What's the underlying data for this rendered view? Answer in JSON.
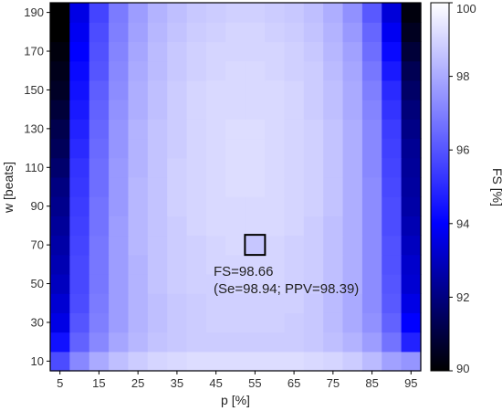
{
  "chart_data": {
    "type": "heatmap",
    "xlabel": "p  [%]",
    "ylabel": "w [beats]",
    "x": [
      5,
      10,
      15,
      20,
      25,
      30,
      35,
      40,
      45,
      50,
      55,
      60,
      65,
      70,
      75,
      80,
      85,
      90,
      95
    ],
    "y": [
      10,
      20,
      30,
      40,
      50,
      60,
      70,
      80,
      90,
      100,
      110,
      120,
      130,
      140,
      150,
      160,
      170,
      180,
      190
    ],
    "x_ticks": [
      5,
      15,
      25,
      35,
      45,
      55,
      65,
      75,
      85,
      95
    ],
    "y_ticks": [
      10,
      30,
      50,
      70,
      90,
      110,
      130,
      150,
      170,
      190
    ],
    "values": [
      [
        95.8,
        97.2,
        98.0,
        98.5,
        98.8,
        99.0,
        99.1,
        99.2,
        99.2,
        99.2,
        99.2,
        99.2,
        99.2,
        99.1,
        99.0,
        98.8,
        98.4,
        97.8,
        97.5
      ],
      [
        94.4,
        96.3,
        97.2,
        97.9,
        98.3,
        98.6,
        98.7,
        98.8,
        98.8,
        98.8,
        98.8,
        98.8,
        98.8,
        98.7,
        98.5,
        98.2,
        97.7,
        96.7,
        94.8
      ],
      [
        93.6,
        96.0,
        97.0,
        97.7,
        98.2,
        98.5,
        98.7,
        98.8,
        98.9,
        98.9,
        98.9,
        98.9,
        98.8,
        98.7,
        98.4,
        98.0,
        97.4,
        96.3,
        94.0
      ],
      [
        93.3,
        95.8,
        96.9,
        97.7,
        98.2,
        98.5,
        98.7,
        98.8,
        98.9,
        98.9,
        98.9,
        98.9,
        98.9,
        98.7,
        98.4,
        98.0,
        97.3,
        96.1,
        93.6
      ],
      [
        93.0,
        95.7,
        96.8,
        97.7,
        98.2,
        98.6,
        98.8,
        98.9,
        98.9,
        99.0,
        99.0,
        99.0,
        98.9,
        98.8,
        98.5,
        98.1,
        97.3,
        96.0,
        93.3
      ],
      [
        92.8,
        95.7,
        96.8,
        97.7,
        98.2,
        98.6,
        98.8,
        98.9,
        99.0,
        99.0,
        99.0,
        99.0,
        98.9,
        98.8,
        98.5,
        98.1,
        97.3,
        95.9,
        93.2
      ],
      [
        92.6,
        95.6,
        96.8,
        97.7,
        98.3,
        98.6,
        98.8,
        98.9,
        99.0,
        99.1,
        98.66,
        99.0,
        98.9,
        98.8,
        98.5,
        98.1,
        97.3,
        95.9,
        93.0
      ],
      [
        92.4,
        95.5,
        96.7,
        97.7,
        98.3,
        98.6,
        98.8,
        99.0,
        99.1,
        99.1,
        99.1,
        99.1,
        99.0,
        98.8,
        98.5,
        98.1,
        97.3,
        95.8,
        92.8
      ],
      [
        92.2,
        95.4,
        96.7,
        97.6,
        98.3,
        98.6,
        98.9,
        99.0,
        99.1,
        99.1,
        99.1,
        99.1,
        99.0,
        98.9,
        98.6,
        98.1,
        97.3,
        95.8,
        92.6
      ],
      [
        92.0,
        95.3,
        96.6,
        97.6,
        98.3,
        98.6,
        98.9,
        99.0,
        99.1,
        99.2,
        99.2,
        99.1,
        99.0,
        98.9,
        98.6,
        98.1,
        97.3,
        95.7,
        92.5
      ],
      [
        91.7,
        95.2,
        96.6,
        97.6,
        98.2,
        98.6,
        98.9,
        99.0,
        99.1,
        99.2,
        99.2,
        99.1,
        99.0,
        98.9,
        98.6,
        98.1,
        97.2,
        95.6,
        92.4
      ],
      [
        91.4,
        95.0,
        96.5,
        97.5,
        98.2,
        98.6,
        98.8,
        99.0,
        99.1,
        99.2,
        99.2,
        99.1,
        99.0,
        98.9,
        98.6,
        98.1,
        97.2,
        95.5,
        92.3
      ],
      [
        91.2,
        94.8,
        96.4,
        97.5,
        98.2,
        98.6,
        98.8,
        99.0,
        99.1,
        99.2,
        99.2,
        99.1,
        99.0,
        98.9,
        98.6,
        98.1,
        97.2,
        95.4,
        92.1
      ],
      [
        90.9,
        94.6,
        96.3,
        97.4,
        98.1,
        98.5,
        98.8,
        99.0,
        99.1,
        99.1,
        99.1,
        99.1,
        99.0,
        98.8,
        98.5,
        98.0,
        97.1,
        95.2,
        91.9
      ],
      [
        90.6,
        94.4,
        96.2,
        97.3,
        98.1,
        98.5,
        98.8,
        99.0,
        99.1,
        99.1,
        99.1,
        99.1,
        99.0,
        98.8,
        98.5,
        98.0,
        97.0,
        95.0,
        91.6
      ],
      [
        90.4,
        94.2,
        96.0,
        97.2,
        98.0,
        98.4,
        98.7,
        98.9,
        99.0,
        99.1,
        99.1,
        99.0,
        98.9,
        98.8,
        98.4,
        97.9,
        96.8,
        94.6,
        91.3
      ],
      [
        90.2,
        94.0,
        95.9,
        97.1,
        97.9,
        98.4,
        98.7,
        98.9,
        99.0,
        99.0,
        99.0,
        99.0,
        98.9,
        98.7,
        98.3,
        97.8,
        96.6,
        94.2,
        90.9
      ],
      [
        90.0,
        93.8,
        95.8,
        97.0,
        97.8,
        98.3,
        98.6,
        98.8,
        98.9,
        99.0,
        99.0,
        98.9,
        98.8,
        98.6,
        98.2,
        97.6,
        96.4,
        93.8,
        90.5
      ],
      [
        90.0,
        93.6,
        95.6,
        96.9,
        97.7,
        98.2,
        98.5,
        98.7,
        98.8,
        98.9,
        98.9,
        98.8,
        98.7,
        98.5,
        98.1,
        97.4,
        96.1,
        93.4,
        90.2
      ]
    ],
    "colorbar": {
      "label": "FS [%]",
      "range": [
        90,
        100
      ],
      "ticks": [
        90,
        92,
        94,
        96,
        98,
        100
      ]
    },
    "colormap": [
      "#000000",
      "#0000ff",
      "#ffffff"
    ],
    "highlight": {
      "p": 55,
      "w": 70
    },
    "annotation": {
      "line1": "FS=98.66",
      "line2": "(Se=98.94; PPV=98.39)"
    }
  }
}
